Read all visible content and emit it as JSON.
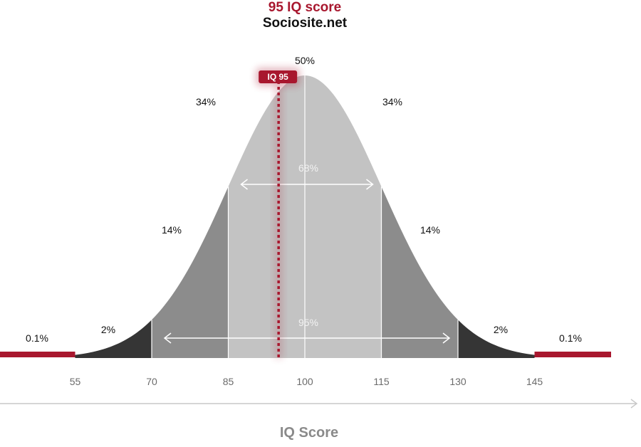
{
  "title": "95 IQ score",
  "subtitle": "Sociosite.net",
  "colors": {
    "accent": "#a8172e",
    "band_inner": "#c3c3c3",
    "band_mid": "#8c8c8c",
    "band_outer": "#353535",
    "axis": "#c8c8c8"
  },
  "chart_data": {
    "type": "area",
    "title": "95 IQ score",
    "subtitle": "Sociosite.net",
    "xlabel": "IQ Score",
    "ylabel": "",
    "xlim": [
      40,
      160
    ],
    "mean": 100,
    "sd": 15,
    "x_ticks": [
      "55",
      "70",
      "85",
      "100",
      "115",
      "130",
      "145"
    ],
    "bands": [
      {
        "label": "0.1%",
        "from": 40,
        "to": 55
      },
      {
        "label": "2%",
        "from": 55,
        "to": 70
      },
      {
        "label": "14%",
        "from": 70,
        "to": 85
      },
      {
        "label": "34%",
        "from": 85,
        "to": 100
      },
      {
        "label": "34%",
        "from": 100,
        "to": 115
      },
      {
        "label": "14%",
        "from": 115,
        "to": 130
      },
      {
        "label": "2%",
        "from": 130,
        "to": 145
      },
      {
        "label": "0.1%",
        "from": 145,
        "to": 160
      }
    ],
    "peak_label": "50%",
    "spans": [
      {
        "label": "68%",
        "from": 85,
        "to": 115
      },
      {
        "label": "95%",
        "from": 70,
        "to": 130
      }
    ],
    "marker": {
      "value": 95,
      "label": "IQ 95"
    },
    "grid": false
  }
}
